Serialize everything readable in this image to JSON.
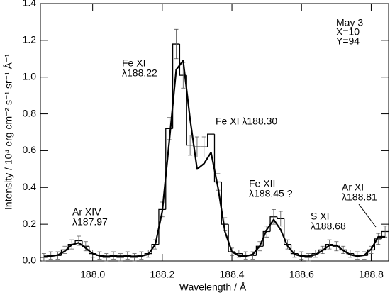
{
  "chart_data": {
    "type": "histogram",
    "x_label": "Wavelength / Å",
    "y_label": "Intensity / 10⁴ erg cm⁻² s⁻¹ sr⁻¹ Å⁻¹",
    "color": "#000000",
    "xlim": [
      187.85,
      188.85
    ],
    "ylim": [
      0,
      1.4
    ],
    "xticks": [
      {
        "value": 188,
        "label": "188.0"
      },
      188.2,
      188.4,
      188.6,
      188.8
    ],
    "yticks": [
      {
        "value": 0,
        "label": "0.0"
      },
      0.2,
      0.4,
      0.6,
      0.8,
      {
        "value": 1,
        "label": "1.0"
      },
      1.2,
      1.4
    ],
    "bins": [
      187.85,
      187.87,
      187.89,
      187.91,
      187.93,
      187.95,
      187.97,
      187.99,
      188.01,
      188.03,
      188.05,
      188.07,
      188.09,
      188.11,
      188.13,
      188.15,
      188.17,
      188.19,
      188.21,
      188.23,
      188.25,
      188.27,
      188.29,
      188.31,
      188.33,
      188.35,
      188.37,
      188.39,
      188.41,
      188.43,
      188.45,
      188.47,
      188.49,
      188.51,
      188.53,
      188.55,
      188.57,
      188.59,
      188.61,
      188.63,
      188.65,
      188.67,
      188.69,
      188.71,
      188.73,
      188.75,
      188.77,
      188.79,
      188.81,
      188.83,
      188.85
    ],
    "values": [
      0.02,
      0.03,
      0.03,
      0.06,
      0.09,
      0.11,
      0.08,
      0.04,
      0.03,
      0.02,
      0.03,
      0.02,
      0.03,
      0.02,
      0.03,
      0.04,
      0.09,
      0.28,
      0.72,
      1.18,
      1.01,
      0.63,
      0.62,
      0.62,
      0.69,
      0.43,
      0.2,
      0.05,
      0.04,
      0.03,
      0.03,
      0.08,
      0.16,
      0.24,
      0.23,
      0.09,
      0.04,
      0.03,
      0.02,
      0.04,
      0.06,
      0.09,
      0.08,
      0.06,
      0.04,
      0.03,
      0.03,
      0.06,
      0.12,
      0.16
    ],
    "errors": [
      0.02,
      0.02,
      0.02,
      0.02,
      0.025,
      0.025,
      0.025,
      0.02,
      0.02,
      0.02,
      0.02,
      0.02,
      0.02,
      0.02,
      0.02,
      0.02,
      0.025,
      0.04,
      0.06,
      0.08,
      0.07,
      0.055,
      0.055,
      0.055,
      0.06,
      0.045,
      0.035,
      0.02,
      0.02,
      0.02,
      0.02,
      0.025,
      0.03,
      0.04,
      0.04,
      0.025,
      0.02,
      0.02,
      0.02,
      0.02,
      0.02,
      0.025,
      0.025,
      0.02,
      0.02,
      0.02,
      0.02,
      0.02,
      0.03,
      0.03
    ],
    "fit": {
      "x": [
        187.86,
        187.88,
        187.9,
        187.92,
        187.94,
        187.96,
        187.98,
        188.0,
        188.02,
        188.04,
        188.06,
        188.08,
        188.1,
        188.12,
        188.14,
        188.16,
        188.18,
        188.2,
        188.22,
        188.24,
        188.26,
        188.28,
        188.3,
        188.32,
        188.34,
        188.36,
        188.38,
        188.4,
        188.42,
        188.44,
        188.46,
        188.48,
        188.5,
        188.52,
        188.54,
        188.56,
        188.58,
        188.6,
        188.62,
        188.64,
        188.66,
        188.68,
        188.7,
        188.72,
        188.74,
        188.76,
        188.78,
        188.8,
        188.82,
        188.84
      ],
      "values": [
        0.025,
        0.026,
        0.032,
        0.053,
        0.088,
        0.099,
        0.07,
        0.04,
        0.028,
        0.025,
        0.025,
        0.026,
        0.025,
        0.025,
        0.027,
        0.036,
        0.09,
        0.27,
        0.65,
        1.04,
        1.09,
        0.77,
        0.5,
        0.53,
        0.59,
        0.4,
        0.16,
        0.05,
        0.028,
        0.026,
        0.036,
        0.081,
        0.17,
        0.225,
        0.17,
        0.081,
        0.036,
        0.026,
        0.026,
        0.034,
        0.057,
        0.085,
        0.085,
        0.057,
        0.034,
        0.026,
        0.031,
        0.064,
        0.131,
        0.131
      ]
    },
    "annotations": {
      "date": "May 3",
      "pos_x": "X=10",
      "pos_y": "Y=94",
      "fe11a_ion": "Fe XI",
      "fe11a_wl": "λ188.22",
      "fe11b": "Fe XI λ188.30",
      "fe12_ion": "Fe XII",
      "fe12_wl": "λ188.45 ?",
      "s11_ion": "S XI",
      "s11_wl": "λ188.68",
      "ar11_ion": "Ar XI",
      "ar11_wl": "λ188.81",
      "ar14_ion": "Ar XIV",
      "ar14_wl": "λ187.97"
    }
  }
}
